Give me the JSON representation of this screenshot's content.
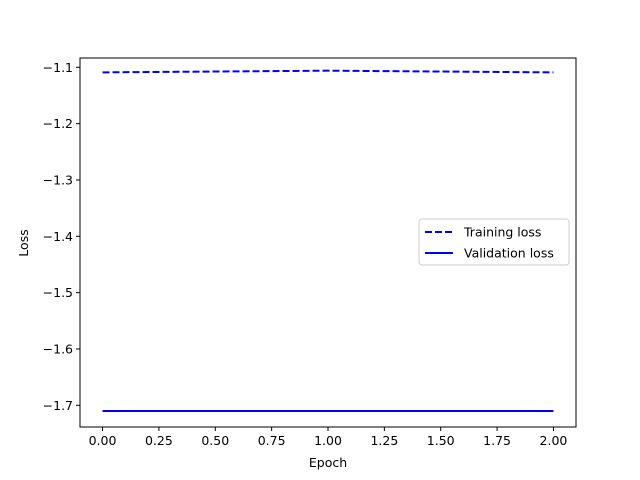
{
  "chart_data": {
    "type": "line",
    "title": "",
    "xlabel": "Epoch",
    "ylabel": "Loss",
    "xlim": [
      -0.1,
      2.1
    ],
    "ylim": [
      -1.7385,
      -1.0835
    ],
    "xticks": [
      0.0,
      0.25,
      0.5,
      0.75,
      1.0,
      1.25,
      1.5,
      1.75,
      2.0
    ],
    "xtick_labels": [
      "0.00",
      "0.25",
      "0.50",
      "0.75",
      "1.00",
      "1.25",
      "1.50",
      "1.75",
      "2.00"
    ],
    "yticks": [
      -1.1,
      -1.2,
      -1.3,
      -1.4,
      -1.5,
      -1.6,
      -1.7
    ],
    "ytick_labels": [
      "−1.1",
      "−1.2",
      "−1.3",
      "−1.4",
      "−1.5",
      "−1.6",
      "−1.7"
    ],
    "grid": false,
    "legend_position": "center-right",
    "series": [
      {
        "name": "Training loss",
        "color": "#0000ff",
        "style": "dashed",
        "x": [
          0,
          1,
          2
        ],
        "y": [
          -1.109,
          -1.106,
          -1.109
        ]
      },
      {
        "name": "Validation loss",
        "color": "#0000ff",
        "style": "solid",
        "x": [
          0,
          1,
          2
        ],
        "y": [
          -1.71,
          -1.71,
          -1.71
        ]
      }
    ]
  }
}
